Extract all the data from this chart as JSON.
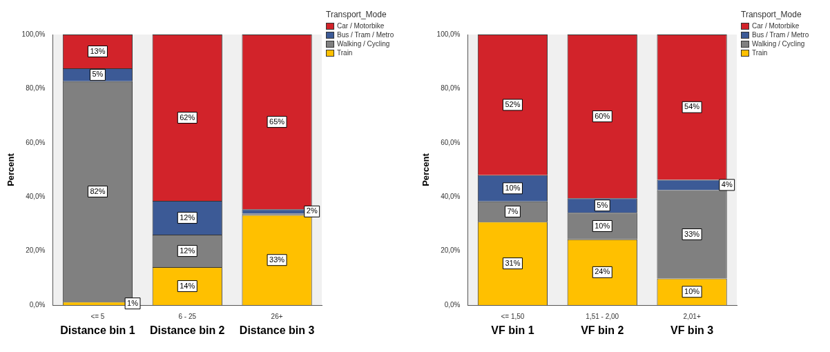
{
  "chart_data": [
    {
      "type": "bar",
      "stacked": true,
      "ylabel": "Percent",
      "legend_title": "Transport_Mode",
      "legend": "top right",
      "categories": [
        "<= 5",
        "6 - 25",
        "26+"
      ],
      "ylim": [
        0,
        100
      ],
      "yticks": [
        {
          "value": 0,
          "label": "0,0%"
        },
        {
          "value": 20,
          "label": "20,0%"
        },
        {
          "value": 40,
          "label": "40,0%"
        },
        {
          "value": 60,
          "label": "60,0%"
        },
        {
          "value": 80,
          "label": "80,0%"
        },
        {
          "value": 100,
          "label": "100,0%"
        }
      ],
      "series": [
        {
          "name": "Train",
          "color": "#ffc000",
          "values": [
            1.2,
            14,
            33.3
          ],
          "value_labels": [
            "1%",
            "14%",
            "33%"
          ]
        },
        {
          "name": "Walking / Cycling",
          "color": "#808080",
          "values": [
            81.5,
            12,
            0.5
          ],
          "value_labels": [
            "82%",
            "12%",
            null
          ]
        },
        {
          "name": "Bus / Tram / Metro",
          "color": "#3c5a96",
          "values": [
            4.8,
            12.5,
            1.6
          ],
          "value_labels": [
            "5%",
            "12%",
            "2%"
          ]
        },
        {
          "name": "Car / Motorbike",
          "color": "#d2232a",
          "values": [
            12.5,
            61.5,
            64.6
          ],
          "value_labels": [
            "13%",
            "62%",
            "65%"
          ]
        }
      ],
      "annotations": [
        "Distance bin 1",
        "Distance bin 2",
        "Distance bin 3"
      ]
    },
    {
      "type": "bar",
      "stacked": true,
      "ylabel": "Percent",
      "legend_title": "Transport_Mode",
      "legend": "top right",
      "categories": [
        "<= 1,50",
        "1,51 - 2,00",
        "2,01+"
      ],
      "ylim": [
        0,
        100
      ],
      "yticks": [
        {
          "value": 0,
          "label": "0,0%"
        },
        {
          "value": 20,
          "label": "20,0%"
        },
        {
          "value": 40,
          "label": "40,0%"
        },
        {
          "value": 60,
          "label": "60,0%"
        },
        {
          "value": 80,
          "label": "80,0%"
        },
        {
          "value": 100,
          "label": "100,0%"
        }
      ],
      "series": [
        {
          "name": "Train",
          "color": "#ffc000",
          "values": [
            30.8,
            24.3,
            9.8
          ],
          "value_labels": [
            "31%",
            "24%",
            "10%"
          ]
        },
        {
          "name": "Walking / Cycling",
          "color": "#808080",
          "values": [
            7.5,
            9.8,
            32.7
          ],
          "value_labels": [
            "7%",
            "10%",
            "33%"
          ]
        },
        {
          "name": "Bus / Tram / Metro",
          "color": "#3c5a96",
          "values": [
            9.7,
            5.4,
            3.8
          ],
          "value_labels": [
            "10%",
            "5%",
            "4%"
          ]
        },
        {
          "name": "Car / Motorbike",
          "color": "#d2232a",
          "values": [
            52,
            60.5,
            53.7
          ],
          "value_labels": [
            "52%",
            "60%",
            "54%"
          ]
        }
      ],
      "annotations": [
        "VF bin 1",
        "VF bin 2",
        "VF bin 3"
      ]
    }
  ]
}
